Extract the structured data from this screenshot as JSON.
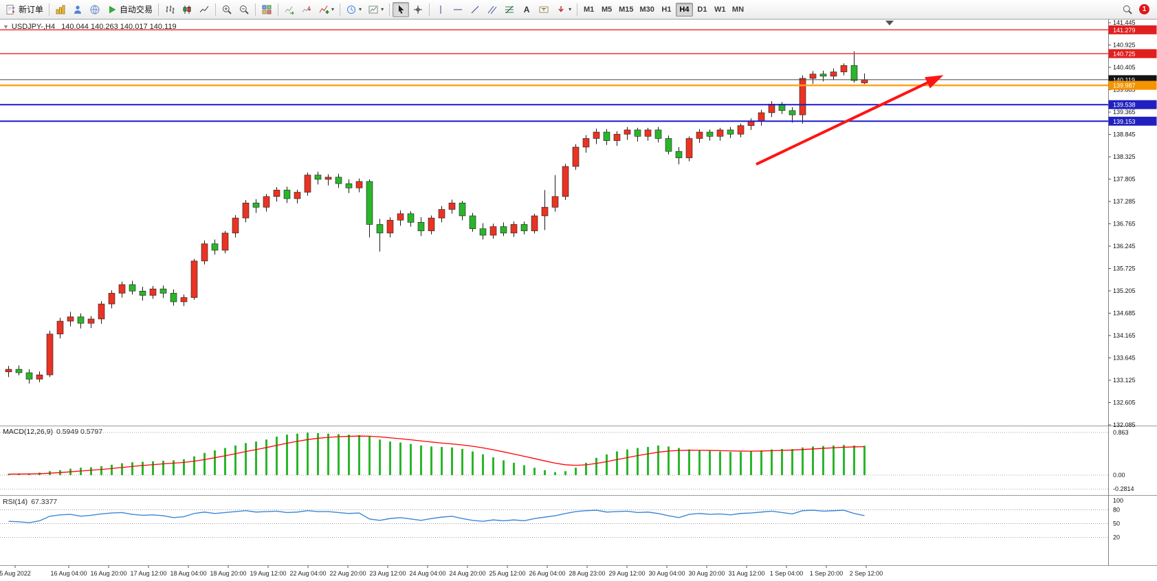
{
  "toolbar": {
    "new_order": "新订单",
    "auto_trading": "自动交易",
    "timeframes": [
      "M1",
      "M5",
      "M15",
      "M30",
      "H1",
      "H4",
      "D1",
      "W1",
      "MN"
    ],
    "active_timeframe": "H4",
    "notification_count": "1"
  },
  "chart": {
    "one_click_marker": "▼",
    "title": {
      "symbol": "USDJPY-,H4",
      "ohlc": "140.044 140.263 140.017 140.119"
    },
    "indicators": {
      "macd": {
        "name": "MACD(12,26,9)",
        "values": "0.5949 0.5797",
        "scale_labels": [
          "0.863",
          "0.00",
          "-0.2814"
        ]
      },
      "rsi": {
        "name": "RSI(14)",
        "value": "67.3377",
        "scale_labels": [
          "100",
          "80",
          "50",
          "20"
        ]
      }
    }
  },
  "chart_data": [
    {
      "type": "candlestick",
      "title": "USDJPY- H4",
      "ylim": [
        132.085,
        141.445
      ],
      "y_ticks": [
        "141.445",
        "140.925",
        "140.405",
        "139.885",
        "139.365",
        "138.845",
        "138.325",
        "137.805",
        "137.285",
        "136.765",
        "136.245",
        "135.725",
        "135.205",
        "134.685",
        "134.165",
        "133.645",
        "133.125",
        "132.605",
        "132.085"
      ],
      "x_ticks": [
        "5 Aug 2022",
        "16 Aug 04:00",
        "16 Aug 20:00",
        "17 Aug 12:00",
        "18 Aug 04:00",
        "18 Aug 20:00",
        "19 Aug 12:00",
        "22 Aug 04:00",
        "22 Aug 20:00",
        "23 Aug 12:00",
        "24 Aug 04:00",
        "24 Aug 20:00",
        "25 Aug 12:00",
        "26 Aug 04:00",
        "28 Aug 23:00",
        "29 Aug 12:00",
        "30 Aug 04:00",
        "30 Aug 20:00",
        "31 Aug 12:00",
        "1 Sep 04:00",
        "1 Sep 20:00",
        "2 Sep 12:00"
      ],
      "bull_color": "#ea3323",
      "bear_color": "#2ab62a",
      "wick_color": "#1a1a1a",
      "ohlc": [
        [
          133.32,
          133.46,
          133.2,
          133.38
        ],
        [
          133.38,
          133.47,
          133.24,
          133.3
        ],
        [
          133.3,
          133.38,
          133.05,
          133.15
        ],
        [
          133.15,
          133.33,
          133.08,
          133.25
        ],
        [
          133.25,
          134.28,
          133.2,
          134.2
        ],
        [
          134.2,
          134.58,
          134.1,
          134.5
        ],
        [
          134.5,
          134.72,
          134.38,
          134.6
        ],
        [
          134.6,
          134.68,
          134.33,
          134.45
        ],
        [
          134.45,
          134.62,
          134.34,
          134.55
        ],
        [
          134.55,
          134.97,
          134.44,
          134.9
        ],
        [
          134.9,
          135.22,
          134.8,
          135.15
        ],
        [
          135.15,
          135.42,
          135.05,
          135.35
        ],
        [
          135.35,
          135.44,
          135.12,
          135.2
        ],
        [
          135.2,
          135.3,
          134.98,
          135.1
        ],
        [
          135.1,
          135.32,
          135.02,
          135.25
        ],
        [
          135.25,
          135.33,
          135.04,
          135.15
        ],
        [
          135.15,
          135.24,
          134.86,
          134.95
        ],
        [
          134.95,
          135.12,
          134.85,
          135.05
        ],
        [
          135.05,
          135.95,
          135.0,
          135.9
        ],
        [
          135.9,
          136.38,
          135.82,
          136.3
        ],
        [
          136.3,
          136.4,
          136.05,
          136.15
        ],
        [
          136.15,
          136.6,
          136.08,
          136.55
        ],
        [
          136.55,
          136.97,
          136.45,
          136.9
        ],
        [
          136.9,
          137.32,
          136.8,
          137.25
        ],
        [
          137.25,
          137.34,
          137.02,
          137.15
        ],
        [
          137.15,
          137.46,
          137.05,
          137.4
        ],
        [
          137.4,
          137.62,
          137.28,
          137.55
        ],
        [
          137.55,
          137.63,
          137.25,
          137.35
        ],
        [
          137.35,
          137.56,
          137.24,
          137.5
        ],
        [
          137.5,
          137.96,
          137.42,
          137.9
        ],
        [
          137.9,
          137.98,
          137.68,
          137.8
        ],
        [
          137.8,
          137.92,
          137.66,
          137.85
        ],
        [
          137.85,
          137.93,
          137.6,
          137.7
        ],
        [
          137.7,
          137.8,
          137.48,
          137.6
        ],
        [
          137.6,
          137.82,
          137.5,
          137.75
        ],
        [
          137.75,
          137.8,
          136.45,
          136.75
        ],
        [
          136.75,
          136.88,
          136.12,
          136.55
        ],
        [
          136.55,
          136.92,
          136.45,
          136.85
        ],
        [
          136.85,
          137.08,
          136.72,
          137.0
        ],
        [
          137.0,
          137.06,
          136.7,
          136.8
        ],
        [
          136.8,
          136.92,
          136.48,
          136.6
        ],
        [
          136.6,
          136.96,
          136.52,
          136.9
        ],
        [
          136.9,
          137.18,
          136.8,
          137.1
        ],
        [
          137.1,
          137.33,
          137.0,
          137.25
        ],
        [
          137.25,
          137.3,
          136.85,
          136.95
        ],
        [
          136.95,
          137.02,
          136.58,
          136.65
        ],
        [
          136.65,
          136.78,
          136.4,
          136.5
        ],
        [
          136.5,
          136.77,
          136.42,
          136.7
        ],
        [
          136.7,
          136.8,
          136.48,
          136.55
        ],
        [
          136.55,
          136.82,
          136.46,
          136.75
        ],
        [
          136.75,
          136.82,
          136.52,
          136.6
        ],
        [
          136.6,
          137.0,
          136.54,
          136.95
        ],
        [
          136.95,
          137.55,
          136.62,
          137.15
        ],
        [
          137.15,
          137.9,
          137.05,
          137.4
        ],
        [
          137.4,
          138.16,
          137.32,
          138.1
        ],
        [
          138.1,
          138.62,
          138.02,
          138.55
        ],
        [
          138.55,
          138.83,
          138.42,
          138.75
        ],
        [
          138.75,
          138.98,
          138.62,
          138.9
        ],
        [
          138.9,
          138.97,
          138.6,
          138.7
        ],
        [
          138.7,
          138.92,
          138.58,
          138.85
        ],
        [
          138.85,
          139.02,
          138.72,
          138.95
        ],
        [
          138.95,
          139.0,
          138.68,
          138.8
        ],
        [
          138.8,
          139.0,
          138.7,
          138.95
        ],
        [
          138.95,
          139.02,
          138.66,
          138.75
        ],
        [
          138.75,
          138.82,
          138.38,
          138.45
        ],
        [
          138.45,
          138.55,
          138.15,
          138.3
        ],
        [
          138.3,
          138.8,
          138.22,
          138.75
        ],
        [
          138.75,
          138.97,
          138.65,
          138.9
        ],
        [
          138.9,
          138.96,
          138.7,
          138.8
        ],
        [
          138.8,
          139.0,
          138.7,
          138.95
        ],
        [
          138.95,
          139.02,
          138.76,
          138.85
        ],
        [
          138.85,
          139.1,
          138.78,
          139.05
        ],
        [
          139.05,
          139.22,
          138.95,
          139.15
        ],
        [
          139.15,
          139.42,
          139.05,
          139.35
        ],
        [
          139.35,
          139.62,
          139.25,
          139.55
        ],
        [
          139.55,
          139.6,
          139.32,
          139.4
        ],
        [
          139.4,
          139.48,
          139.12,
          139.3
        ],
        [
          139.3,
          140.22,
          139.1,
          140.15
        ],
        [
          140.15,
          140.32,
          140.02,
          140.25
        ],
        [
          140.25,
          140.33,
          140.08,
          140.2
        ],
        [
          140.2,
          140.38,
          140.12,
          140.3
        ],
        [
          140.3,
          140.5,
          140.22,
          140.45
        ],
        [
          140.45,
          140.78,
          140.05,
          140.1
        ],
        [
          140.044,
          140.263,
          140.017,
          140.119
        ]
      ],
      "hlines": [
        {
          "price": 141.279,
          "label": "141.279",
          "color": "#f03030",
          "label_bg": "#e02020",
          "weight": 1.6
        },
        {
          "price": 140.725,
          "label": "140.725",
          "color": "#f03030",
          "label_bg": "#e02020",
          "weight": 1.6
        },
        {
          "price": 140.119,
          "label": "140.119",
          "color": "#444444",
          "label_bg": "#141414",
          "weight": 1
        },
        {
          "price": 139.987,
          "label": "139.987",
          "color": "#ffa21c",
          "label_bg": "#f59300",
          "weight": 2.4
        },
        {
          "price": 139.538,
          "label": "139.538",
          "color": "#1a1acc",
          "label_bg": "#2020c0",
          "weight": 2
        },
        {
          "price": 139.153,
          "label": "139.153",
          "color": "#1a1acc",
          "label_bg": "#2020c0",
          "weight": 2
        }
      ],
      "annotations": [
        {
          "type": "arrow",
          "color": "#ff1414",
          "from": {
            "bar": 72.5,
            "price": 138.15
          },
          "to": {
            "bar": 91.5,
            "price": 140.28
          }
        }
      ]
    },
    {
      "type": "bar",
      "title": "MACD(12,26,9)",
      "bar_color": "#2ab62a",
      "signal_color": "#ff0000",
      "levels": [
        0.863,
        0,
        -0.2814
      ],
      "ylim": [
        -0.39,
        0.98
      ],
      "values": [
        0.02,
        0.03,
        0.03,
        0.05,
        0.08,
        0.1,
        0.13,
        0.15,
        0.16,
        0.18,
        0.21,
        0.24,
        0.26,
        0.27,
        0.28,
        0.29,
        0.3,
        0.32,
        0.38,
        0.45,
        0.5,
        0.55,
        0.6,
        0.65,
        0.68,
        0.72,
        0.78,
        0.82,
        0.84,
        0.86,
        0.85,
        0.84,
        0.83,
        0.82,
        0.81,
        0.78,
        0.72,
        0.68,
        0.66,
        0.63,
        0.6,
        0.58,
        0.57,
        0.56,
        0.53,
        0.48,
        0.42,
        0.36,
        0.3,
        0.25,
        0.2,
        0.15,
        0.1,
        0.06,
        0.08,
        0.15,
        0.25,
        0.35,
        0.42,
        0.48,
        0.52,
        0.55,
        0.57,
        0.6,
        0.58,
        0.55,
        0.52,
        0.5,
        0.49,
        0.48,
        0.47,
        0.47,
        0.48,
        0.5,
        0.52,
        0.53,
        0.53,
        0.56,
        0.58,
        0.59,
        0.6,
        0.61,
        0.6,
        0.5949
      ]
    },
    {
      "type": "line",
      "title": "RSI(14)",
      "line_color": "#3a87d8",
      "levels": [
        80,
        50,
        20
      ],
      "ylim": [
        0,
        100
      ],
      "values": [
        55,
        54,
        52,
        56,
        66,
        69,
        70,
        66,
        68,
        71,
        73,
        74,
        70,
        68,
        69,
        67,
        63,
        65,
        72,
        75,
        72,
        74,
        76,
        78,
        75,
        76,
        77,
        74,
        75,
        78,
        76,
        76,
        74,
        72,
        73,
        60,
        57,
        61,
        63,
        60,
        57,
        61,
        64,
        66,
        61,
        57,
        55,
        58,
        56,
        58,
        56,
        61,
        64,
        67,
        72,
        76,
        78,
        79,
        75,
        76,
        77,
        74,
        75,
        72,
        67,
        63,
        70,
        72,
        70,
        71,
        69,
        72,
        73,
        75,
        77,
        74,
        71,
        78,
        79,
        77,
        78,
        79,
        72,
        67.34
      ]
    }
  ]
}
